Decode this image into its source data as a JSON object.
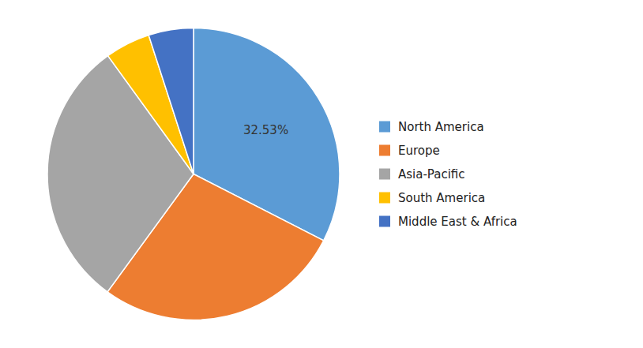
{
  "chart_data": {
    "type": "pie",
    "categories": [
      "North America",
      "Europe",
      "Asia-Pacific",
      "South America",
      "Middle East & Africa"
    ],
    "values": [
      32.53,
      27.5,
      30.0,
      5.0,
      4.97
    ],
    "colors": [
      "#5B9BD5",
      "#ED7D31",
      "#A5A5A5",
      "#FFC000",
      "#4472C4"
    ],
    "annotations": [
      "32.53%"
    ],
    "legend": "right"
  }
}
